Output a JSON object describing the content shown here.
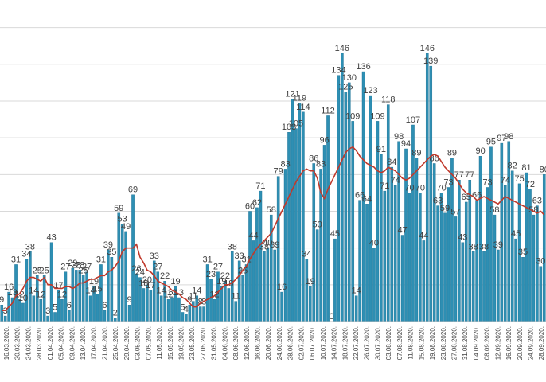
{
  "chart_data": {
    "type": "bar",
    "ylim": [
      0,
      175
    ],
    "grid": true,
    "bar_color": "#2e8fb3",
    "trend_color": "#c0392b",
    "series": [
      {
        "kind": "bar"
      },
      {
        "kind": "line"
      }
    ],
    "x_tick_labels": [
      "16.03.2020.",
      "20.03.2020.",
      "24.03.2020.",
      "28.03.2020.",
      "01.04.2020.",
      "05.04.2020.",
      "09.04.2020.",
      "13.04.2020.",
      "17.04.2020.",
      "21.04.2020.",
      "25.04.2020.",
      "29.04.2020.",
      "03.05.2020.",
      "07.05.2020.",
      "11.05.2020.",
      "15.05.2020.",
      "19.05.2020.",
      "23.05.2020.",
      "27.05.2020.",
      "31.05.2020.",
      "04.06.2020.",
      "08.06.2020.",
      "12.06.2020.",
      "16.06.2020.",
      "20.06.2020.",
      "24.06.2020.",
      "28.06.2020.",
      "02.07.2020.",
      "06.07.2020.",
      "10.07.2020.",
      "14.07.2020.",
      "18.07.2020.",
      "22.07.2020.",
      "26.07.2020.",
      "30.07.2020.",
      "03.08.2020.",
      "07.08.2020.",
      "11.08.2020.",
      "15.08.2020.",
      "19.08.2020.",
      "23.08.2020.",
      "27.08.2020.",
      "31.08.2020.",
      "04.09.2020.",
      "08.09.2020.",
      "12.09.2020.",
      "16.09.2020.",
      "20.09.2020.",
      "24.09.2020.",
      "28.09.2020."
    ],
    "values": [
      9,
      3,
      16,
      13,
      31,
      12,
      10,
      34,
      38,
      14,
      25,
      12,
      25,
      3,
      43,
      5,
      17,
      12,
      27,
      6,
      29,
      28,
      28,
      25,
      27,
      14,
      19,
      15,
      31,
      6,
      39,
      35,
      2,
      59,
      53,
      49,
      9,
      69,
      26,
      24,
      18,
      20,
      17,
      33,
      27,
      14,
      22,
      12,
      13,
      19,
      13,
      5,
      4,
      9,
      11,
      14,
      8,
      8,
      31,
      23,
      12,
      27,
      19,
      22,
      18,
      38,
      11,
      33,
      25,
      31,
      60,
      44,
      62,
      71,
      38,
      40,
      58,
      39,
      79,
      16,
      83,
      103,
      121,
      105,
      119,
      114,
      34,
      19,
      86,
      50,
      83,
      96,
      112,
      0,
      45,
      134,
      146,
      125,
      130,
      109,
      14,
      66,
      136,
      64,
      123,
      40,
      109,
      91,
      71,
      118,
      84,
      74,
      98,
      47,
      94,
      70,
      107,
      89,
      70,
      44,
      146,
      139,
      86,
      63,
      70,
      59,
      73,
      89,
      57,
      77,
      43,
      65,
      77,
      38,
      66,
      90,
      38,
      73,
      95,
      58,
      39,
      97,
      74,
      98,
      82,
      45,
      75,
      35,
      81,
      72,
      58,
      63,
      30,
      80
    ],
    "trend": [
      6,
      6,
      8,
      10,
      14,
      15,
      18,
      22,
      24,
      24,
      23,
      22,
      24,
      20,
      20,
      18,
      18,
      18,
      19,
      19,
      18,
      19,
      21,
      21,
      22,
      23,
      23,
      24,
      25,
      25,
      27,
      28,
      30,
      33,
      38,
      40,
      40,
      40,
      42,
      35,
      32,
      28,
      27,
      25,
      22,
      21,
      20,
      19,
      17,
      16,
      15,
      13,
      12,
      10,
      8,
      8,
      10,
      11,
      12,
      13,
      14,
      16,
      18,
      20,
      20,
      21,
      23,
      25,
      28,
      30,
      34,
      37,
      40,
      42,
      44,
      46,
      48,
      52,
      56,
      60,
      64,
      68,
      72,
      76,
      79,
      82,
      83,
      82,
      82,
      78,
      70,
      67,
      72,
      76,
      80,
      84,
      88,
      92,
      94,
      95,
      93,
      90,
      88,
      86,
      85,
      84,
      82,
      81,
      82,
      84,
      83,
      82,
      80,
      78,
      77,
      78,
      80,
      82,
      84,
      86,
      88,
      90,
      91,
      90,
      87,
      84,
      82,
      80,
      78,
      75,
      72,
      70,
      69,
      68,
      66,
      67,
      68,
      67,
      66,
      65,
      64,
      66,
      68,
      67,
      66,
      65,
      64,
      63,
      62,
      61,
      60,
      59,
      60,
      58
    ]
  }
}
